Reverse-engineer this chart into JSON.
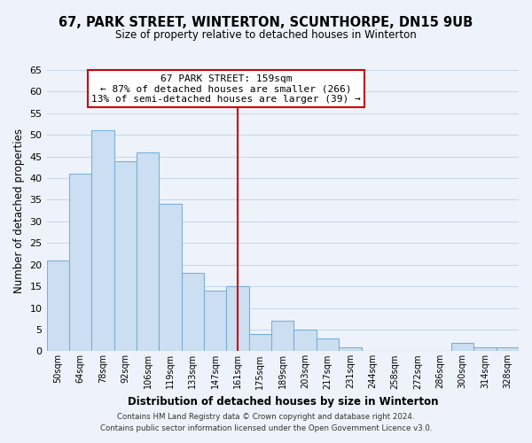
{
  "title": "67, PARK STREET, WINTERTON, SCUNTHORPE, DN15 9UB",
  "subtitle": "Size of property relative to detached houses in Winterton",
  "xlabel": "Distribution of detached houses by size in Winterton",
  "ylabel": "Number of detached properties",
  "bar_labels": [
    "50sqm",
    "64sqm",
    "78sqm",
    "92sqm",
    "106sqm",
    "119sqm",
    "133sqm",
    "147sqm",
    "161sqm",
    "175sqm",
    "189sqm",
    "203sqm",
    "217sqm",
    "231sqm",
    "244sqm",
    "258sqm",
    "272sqm",
    "286sqm",
    "300sqm",
    "314sqm",
    "328sqm"
  ],
  "bar_values": [
    21,
    41,
    51,
    44,
    46,
    34,
    18,
    14,
    15,
    4,
    7,
    5,
    3,
    1,
    0,
    0,
    0,
    0,
    2,
    1,
    1
  ],
  "bar_color": "#ccdff2",
  "bar_edge_color": "#7ab0d8",
  "highlight_index": 8,
  "highlight_line_color": "#cc0000",
  "annotation_title": "67 PARK STREET: 159sqm",
  "annotation_line1": "← 87% of detached houses are smaller (266)",
  "annotation_line2": "13% of semi-detached houses are larger (39) →",
  "annotation_box_color": "#ffffff",
  "annotation_box_edge_color": "#cc0000",
  "ylim": [
    0,
    65
  ],
  "yticks": [
    0,
    5,
    10,
    15,
    20,
    25,
    30,
    35,
    40,
    45,
    50,
    55,
    60,
    65
  ],
  "grid_color": "#c8d8e8",
  "background_color": "#eef3fb",
  "footnote1": "Contains HM Land Registry data © Crown copyright and database right 2024.",
  "footnote2": "Contains public sector information licensed under the Open Government Licence v3.0."
}
